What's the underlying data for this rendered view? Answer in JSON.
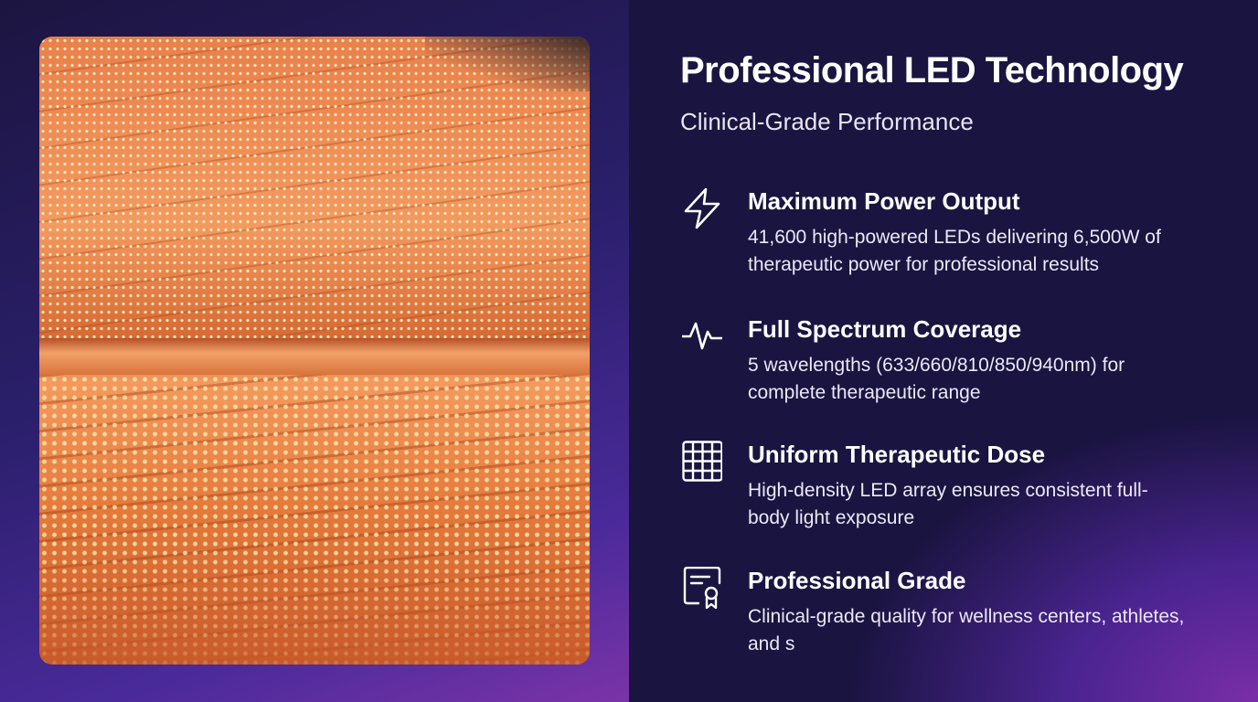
{
  "header": {
    "title": "Professional LED Technology",
    "subtitle": "Clinical-Grade Performance"
  },
  "image": {
    "description_icon": "led-panel-photo"
  },
  "features": [
    {
      "icon": "lightning-bolt-icon",
      "title": "Maximum Power Output",
      "text": "41,600 high-powered LEDs delivering 6,500W of therapeutic power for professional results"
    },
    {
      "icon": "pulse-wave-icon",
      "title": "Full Spectrum Coverage",
      "text": "5 wavelengths (633/660/810/850/940nm) for complete therapeutic range"
    },
    {
      "icon": "grid-icon",
      "title": "Uniform Therapeutic Dose",
      "text": "High-density LED array ensures consistent full-body light exposure"
    },
    {
      "icon": "certificate-icon",
      "title": "Professional Grade",
      "text": "Clinical-grade quality for wellness centers, athletes, and s"
    }
  ],
  "colors": {
    "background": "#1a1440",
    "accent": "#7a34a8",
    "photo": "#f0905a"
  }
}
